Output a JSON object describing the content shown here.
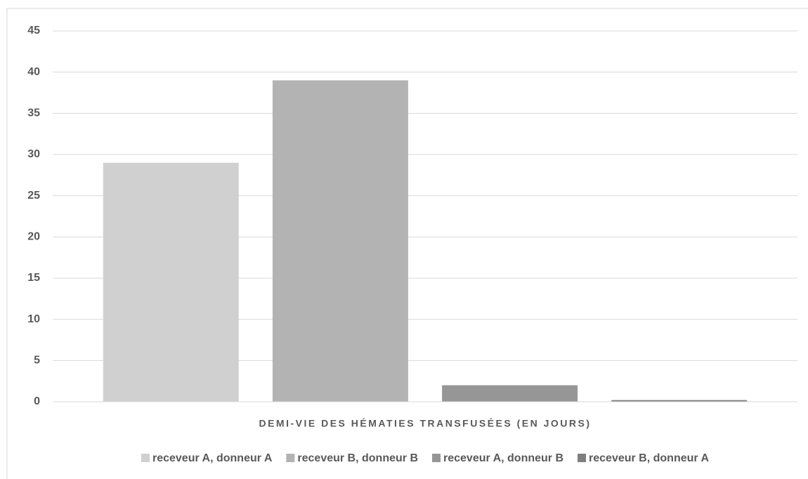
{
  "chart_data": {
    "type": "bar",
    "xlabel": "DEMI-VIE DES HÉMATIES TRANSFUSÉES (EN JOURS)",
    "categories": [
      null
    ],
    "series": [
      {
        "name": "receveur A, donneur A",
        "color": "#d0d0d0",
        "values": [
          29
        ]
      },
      {
        "name": "receveur B, donneur B",
        "color": "#b3b3b3",
        "values": [
          39
        ]
      },
      {
        "name": "receveur A, donneur B",
        "color": "#969696",
        "values": [
          2
        ]
      },
      {
        "name": "receveur B, donneur A",
        "color": "#7f7f7f",
        "values": [
          0.2
        ]
      }
    ],
    "ylim": [
      0,
      45
    ],
    "yticks": [
      0,
      5,
      10,
      15,
      20,
      25,
      30,
      35,
      40,
      45
    ],
    "grid": true,
    "legend": "bottom"
  }
}
